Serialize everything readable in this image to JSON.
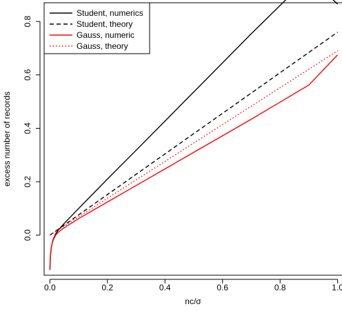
{
  "chart_data": {
    "type": "line",
    "title": "",
    "xlabel": "nc/σ",
    "ylabel": "excess number of records",
    "xlim": [
      -0.02,
      1.02
    ],
    "ylim": [
      -0.15,
      0.87
    ],
    "x_ticks": [
      0.0,
      0.2,
      0.4,
      0.6,
      0.8,
      1.0
    ],
    "x_tick_labels": [
      "0.0",
      "0.2",
      "0.4",
      "0.6",
      "0.8",
      "1.0"
    ],
    "y_ticks": [
      0.0,
      0.2,
      0.4,
      0.6,
      0.8
    ],
    "y_tick_labels": [
      "0.0",
      "0.2",
      "0.4",
      "0.6",
      "0.8"
    ],
    "grid": false,
    "legend_position": "top-left",
    "series": [
      {
        "name": "Student, numerics",
        "color": "#000000",
        "dash": "solid",
        "x": [
          0.0,
          0.002,
          0.005,
          0.01,
          0.02,
          0.03,
          0.05,
          0.075,
          0.1,
          0.15,
          0.2,
          0.3,
          0.4,
          0.5,
          0.6,
          0.7,
          0.8,
          0.9,
          1.0
        ],
        "y": [
          -0.13,
          -0.075,
          -0.045,
          -0.02,
          0.005,
          0.02,
          0.044,
          0.072,
          0.1,
          0.155,
          0.21,
          0.318,
          0.427,
          0.536,
          0.645,
          0.754,
          0.86,
          0.965,
          0.865
        ]
      },
      {
        "name": "Student, theory",
        "color": "#000000",
        "dash": "dashed",
        "x": [
          0.0,
          0.1,
          0.2,
          0.3,
          0.4,
          0.5,
          0.6,
          0.7,
          0.8,
          0.9,
          1.0
        ],
        "y": [
          0.0,
          0.076,
          0.152,
          0.228,
          0.304,
          0.38,
          0.456,
          0.532,
          0.608,
          0.684,
          0.76
        ]
      },
      {
        "name": "Gauss, numeric",
        "color": "#ff0000",
        "dash": "solid",
        "x": [
          0.0,
          0.002,
          0.005,
          0.01,
          0.02,
          0.03,
          0.05,
          0.075,
          0.1,
          0.15,
          0.2,
          0.3,
          0.4,
          0.5,
          0.6,
          0.7,
          0.8,
          0.9,
          1.0
        ],
        "y": [
          -0.13,
          -0.075,
          -0.045,
          -0.022,
          0.0,
          0.012,
          0.028,
          0.045,
          0.062,
          0.093,
          0.124,
          0.186,
          0.248,
          0.31,
          0.372,
          0.434,
          0.498,
          0.562,
          0.675
        ]
      },
      {
        "name": "Gauss, theory",
        "color": "#ff0000",
        "dash": "dotted",
        "x": [
          0.0,
          0.1,
          0.2,
          0.3,
          0.4,
          0.5,
          0.6,
          0.7,
          0.8,
          0.9,
          1.0
        ],
        "y": [
          0.0,
          0.069,
          0.138,
          0.207,
          0.276,
          0.345,
          0.414,
          0.483,
          0.552,
          0.621,
          0.69
        ]
      }
    ]
  }
}
